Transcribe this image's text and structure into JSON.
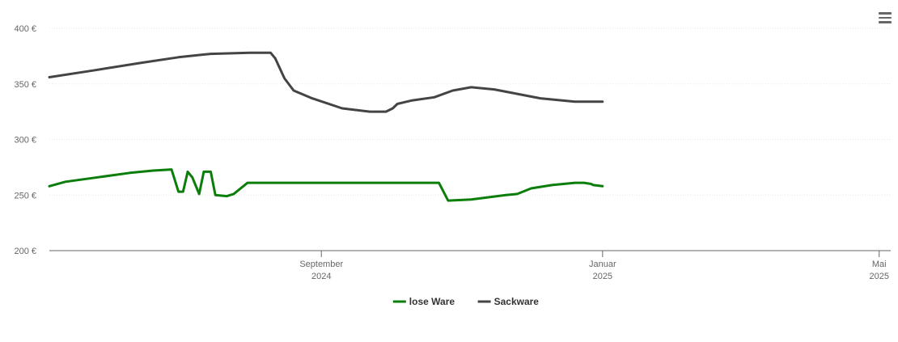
{
  "menu": {
    "icon": "hamburger-menu-icon"
  },
  "chart_data": {
    "type": "line",
    "title": "",
    "xlabel": "",
    "ylabel": "",
    "ylim": [
      200,
      400
    ],
    "yticks": [
      {
        "value": 200,
        "label": "200 €"
      },
      {
        "value": 250,
        "label": "250 €"
      },
      {
        "value": 300,
        "label": "300 €"
      },
      {
        "value": 350,
        "label": "350 €"
      },
      {
        "value": 400,
        "label": "400 €"
      }
    ],
    "xlim": [
      "2024-05-06",
      "2025-05-06"
    ],
    "xticks": [
      {
        "date": "2024-09-01",
        "line1": "September",
        "line2": "2024"
      },
      {
        "date": "2025-01-01",
        "line1": "Januar",
        "line2": "2025"
      },
      {
        "date": "2025-05-01",
        "line1": "Mai",
        "line2": "2025"
      }
    ],
    "grid": true,
    "legend_position": "bottom-center",
    "series": [
      {
        "name": "lose Ware",
        "color": "#0a7d0a",
        "points": [
          [
            "2024-05-06",
            258
          ],
          [
            "2024-05-13",
            262
          ],
          [
            "2024-05-27",
            266
          ],
          [
            "2024-06-10",
            270
          ],
          [
            "2024-06-20",
            272
          ],
          [
            "2024-06-28",
            273
          ],
          [
            "2024-07-01",
            253
          ],
          [
            "2024-07-03",
            253
          ],
          [
            "2024-07-05",
            271
          ],
          [
            "2024-07-07",
            266
          ],
          [
            "2024-07-10",
            251
          ],
          [
            "2024-07-12",
            271
          ],
          [
            "2024-07-15",
            271
          ],
          [
            "2024-07-17",
            250
          ],
          [
            "2024-07-22",
            249
          ],
          [
            "2024-07-25",
            251
          ],
          [
            "2024-07-31",
            261
          ],
          [
            "2024-08-10",
            261
          ],
          [
            "2024-09-15",
            261
          ],
          [
            "2024-10-20",
            261
          ],
          [
            "2024-10-22",
            261
          ],
          [
            "2024-10-26",
            245
          ],
          [
            "2024-11-05",
            246
          ],
          [
            "2024-11-25",
            251
          ],
          [
            "2024-11-20",
            250
          ],
          [
            "2024-12-01",
            256
          ],
          [
            "2024-12-10",
            259
          ],
          [
            "2024-12-20",
            261
          ],
          [
            "2024-12-28",
            259
          ],
          [
            "2024-12-22",
            261
          ],
          [
            "2024-12-27",
            260
          ],
          [
            "2025-01-01",
            258
          ],
          [
            "2024-12-24",
            261
          ]
        ]
      },
      {
        "name": "Sackware",
        "color": "#444444",
        "points": [
          [
            "2024-05-06",
            356
          ],
          [
            "2024-05-25",
            362
          ],
          [
            "2024-06-15",
            369
          ],
          [
            "2024-07-01",
            374
          ],
          [
            "2024-07-15",
            377
          ],
          [
            "2024-08-01",
            378
          ],
          [
            "2024-08-10",
            378
          ],
          [
            "2024-08-12",
            373
          ],
          [
            "2024-08-16",
            355
          ],
          [
            "2024-08-20",
            344
          ],
          [
            "2024-08-28",
            337
          ],
          [
            "2024-09-10",
            328
          ],
          [
            "2024-09-22",
            325
          ],
          [
            "2024-09-29",
            325
          ],
          [
            "2024-10-02",
            328
          ],
          [
            "2024-10-04",
            332
          ],
          [
            "2024-10-10",
            335
          ],
          [
            "2024-10-20",
            338
          ],
          [
            "2024-10-28",
            344
          ],
          [
            "2024-11-05",
            347
          ],
          [
            "2024-11-15",
            345
          ],
          [
            "2024-11-25",
            341
          ],
          [
            "2024-12-05",
            337
          ],
          [
            "2024-12-20",
            334
          ],
          [
            "2025-01-01",
            334
          ]
        ]
      }
    ]
  },
  "legend": [
    {
      "label": "lose Ware",
      "color": "#0a7d0a"
    },
    {
      "label": "Sackware",
      "color": "#444444"
    }
  ]
}
